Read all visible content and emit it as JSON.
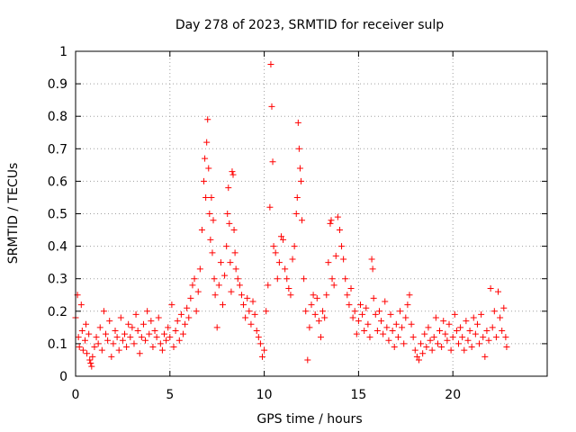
{
  "chart_data": {
    "type": "scatter",
    "title": "Day 278 of 2023, SRMTID for receiver sulp",
    "xlabel": "GPS time / hours",
    "ylabel": "SRMTID / TECUs",
    "xlim": [
      0,
      25
    ],
    "ylim": [
      0,
      1
    ],
    "xticks": [
      0,
      5,
      10,
      15,
      20
    ],
    "yticks": [
      0,
      0.1,
      0.2,
      0.3,
      0.4,
      0.5,
      0.6,
      0.7,
      0.8,
      0.9,
      1
    ],
    "xtick_labels": [
      "0",
      "5",
      "10",
      "15",
      "20"
    ],
    "ytick_labels": [
      "0",
      "0.1",
      "0.2",
      "0.3",
      "0.4",
      "0.5",
      "0.6",
      "0.7",
      "0.8",
      "0.9",
      "1"
    ],
    "grid": true,
    "marker": "+",
    "color": "#ff0000",
    "series": [
      {
        "name": "SRMTID",
        "points": [
          [
            0.0,
            0.18
          ],
          [
            0.1,
            0.25
          ],
          [
            0.15,
            0.12
          ],
          [
            0.2,
            0.09
          ],
          [
            0.3,
            0.22
          ],
          [
            0.35,
            0.14
          ],
          [
            0.4,
            0.08
          ],
          [
            0.5,
            0.11
          ],
          [
            0.55,
            0.16
          ],
          [
            0.6,
            0.07
          ],
          [
            0.7,
            0.13
          ],
          [
            0.75,
            0.05
          ],
          [
            0.8,
            0.04
          ],
          [
            0.85,
            0.03
          ],
          [
            0.9,
            0.06
          ],
          [
            1.0,
            0.09
          ],
          [
            1.1,
            0.12
          ],
          [
            1.2,
            0.1
          ],
          [
            1.3,
            0.15
          ],
          [
            1.4,
            0.08
          ],
          [
            1.5,
            0.2
          ],
          [
            1.6,
            0.13
          ],
          [
            1.7,
            0.11
          ],
          [
            1.8,
            0.17
          ],
          [
            1.9,
            0.06
          ],
          [
            2.0,
            0.1
          ],
          [
            2.1,
            0.14
          ],
          [
            2.2,
            0.12
          ],
          [
            2.3,
            0.08
          ],
          [
            2.4,
            0.18
          ],
          [
            2.5,
            0.11
          ],
          [
            2.6,
            0.13
          ],
          [
            2.7,
            0.09
          ],
          [
            2.8,
            0.16
          ],
          [
            2.9,
            0.12
          ],
          [
            3.0,
            0.15
          ],
          [
            3.1,
            0.1
          ],
          [
            3.2,
            0.19
          ],
          [
            3.3,
            0.14
          ],
          [
            3.4,
            0.07
          ],
          [
            3.5,
            0.12
          ],
          [
            3.6,
            0.16
          ],
          [
            3.7,
            0.11
          ],
          [
            3.8,
            0.2
          ],
          [
            3.9,
            0.13
          ],
          [
            4.0,
            0.17
          ],
          [
            4.1,
            0.09
          ],
          [
            4.2,
            0.14
          ],
          [
            4.3,
            0.12
          ],
          [
            4.4,
            0.18
          ],
          [
            4.5,
            0.1
          ],
          [
            4.6,
            0.08
          ],
          [
            4.7,
            0.13
          ],
          [
            4.8,
            0.11
          ],
          [
            4.9,
            0.15
          ],
          [
            5.0,
            0.12
          ],
          [
            5.1,
            0.22
          ],
          [
            5.2,
            0.09
          ],
          [
            5.3,
            0.14
          ],
          [
            5.4,
            0.17
          ],
          [
            5.5,
            0.11
          ],
          [
            5.6,
            0.19
          ],
          [
            5.7,
            0.13
          ],
          [
            5.8,
            0.16
          ],
          [
            5.9,
            0.21
          ],
          [
            6.0,
            0.18
          ],
          [
            6.1,
            0.24
          ],
          [
            6.2,
            0.28
          ],
          [
            6.3,
            0.3
          ],
          [
            6.4,
            0.2
          ],
          [
            6.5,
            0.26
          ],
          [
            6.6,
            0.33
          ],
          [
            6.7,
            0.45
          ],
          [
            6.8,
            0.6
          ],
          [
            6.85,
            0.67
          ],
          [
            6.9,
            0.55
          ],
          [
            6.95,
            0.72
          ],
          [
            7.0,
            0.79
          ],
          [
            7.05,
            0.64
          ],
          [
            7.1,
            0.5
          ],
          [
            7.15,
            0.42
          ],
          [
            7.2,
            0.55
          ],
          [
            7.25,
            0.38
          ],
          [
            7.3,
            0.48
          ],
          [
            7.35,
            0.3
          ],
          [
            7.4,
            0.25
          ],
          [
            7.5,
            0.15
          ],
          [
            7.6,
            0.28
          ],
          [
            7.7,
            0.35
          ],
          [
            7.8,
            0.22
          ],
          [
            7.9,
            0.31
          ],
          [
            8.0,
            0.4
          ],
          [
            8.05,
            0.5
          ],
          [
            8.1,
            0.58
          ],
          [
            8.15,
            0.47
          ],
          [
            8.2,
            0.35
          ],
          [
            8.25,
            0.26
          ],
          [
            8.3,
            0.63
          ],
          [
            8.35,
            0.62
          ],
          [
            8.4,
            0.45
          ],
          [
            8.45,
            0.38
          ],
          [
            8.5,
            0.33
          ],
          [
            8.6,
            0.3
          ],
          [
            8.7,
            0.28
          ],
          [
            8.8,
            0.25
          ],
          [
            8.9,
            0.22
          ],
          [
            9.0,
            0.18
          ],
          [
            9.1,
            0.24
          ],
          [
            9.2,
            0.2
          ],
          [
            9.3,
            0.16
          ],
          [
            9.4,
            0.23
          ],
          [
            9.5,
            0.19
          ],
          [
            9.6,
            0.14
          ],
          [
            9.7,
            0.12
          ],
          [
            9.8,
            0.1
          ],
          [
            9.9,
            0.06
          ],
          [
            10.0,
            0.08
          ],
          [
            10.1,
            0.2
          ],
          [
            10.2,
            0.28
          ],
          [
            10.3,
            0.52
          ],
          [
            10.35,
            0.96
          ],
          [
            10.4,
            0.83
          ],
          [
            10.45,
            0.66
          ],
          [
            10.5,
            0.4
          ],
          [
            10.6,
            0.38
          ],
          [
            10.7,
            0.3
          ],
          [
            10.8,
            0.35
          ],
          [
            10.9,
            0.43
          ],
          [
            11.0,
            0.42
          ],
          [
            11.1,
            0.33
          ],
          [
            11.2,
            0.3
          ],
          [
            11.3,
            0.27
          ],
          [
            11.4,
            0.25
          ],
          [
            11.5,
            0.36
          ],
          [
            11.6,
            0.4
          ],
          [
            11.7,
            0.5
          ],
          [
            11.75,
            0.55
          ],
          [
            11.8,
            0.78
          ],
          [
            11.85,
            0.7
          ],
          [
            11.9,
            0.64
          ],
          [
            11.95,
            0.6
          ],
          [
            12.0,
            0.48
          ],
          [
            12.1,
            0.3
          ],
          [
            12.2,
            0.2
          ],
          [
            12.3,
            0.05
          ],
          [
            12.4,
            0.15
          ],
          [
            12.5,
            0.22
          ],
          [
            12.6,
            0.25
          ],
          [
            12.7,
            0.19
          ],
          [
            12.8,
            0.24
          ],
          [
            12.9,
            0.17
          ],
          [
            13.0,
            0.12
          ],
          [
            13.1,
            0.2
          ],
          [
            13.2,
            0.18
          ],
          [
            13.3,
            0.25
          ],
          [
            13.4,
            0.35
          ],
          [
            13.5,
            0.47
          ],
          [
            13.55,
            0.48
          ],
          [
            13.6,
            0.3
          ],
          [
            13.7,
            0.28
          ],
          [
            13.8,
            0.37
          ],
          [
            13.9,
            0.49
          ],
          [
            14.0,
            0.45
          ],
          [
            14.1,
            0.4
          ],
          [
            14.2,
            0.36
          ],
          [
            14.3,
            0.3
          ],
          [
            14.4,
            0.25
          ],
          [
            14.5,
            0.22
          ],
          [
            14.6,
            0.27
          ],
          [
            14.7,
            0.18
          ],
          [
            14.8,
            0.2
          ],
          [
            14.9,
            0.13
          ],
          [
            15.0,
            0.17
          ],
          [
            15.1,
            0.22
          ],
          [
            15.2,
            0.19
          ],
          [
            15.3,
            0.14
          ],
          [
            15.4,
            0.21
          ],
          [
            15.5,
            0.16
          ],
          [
            15.6,
            0.12
          ],
          [
            15.7,
            0.36
          ],
          [
            15.75,
            0.33
          ],
          [
            15.8,
            0.24
          ],
          [
            15.9,
            0.19
          ],
          [
            16.0,
            0.14
          ],
          [
            16.1,
            0.2
          ],
          [
            16.2,
            0.17
          ],
          [
            16.3,
            0.13
          ],
          [
            16.4,
            0.23
          ],
          [
            16.5,
            0.15
          ],
          [
            16.6,
            0.11
          ],
          [
            16.7,
            0.19
          ],
          [
            16.8,
            0.14
          ],
          [
            16.9,
            0.09
          ],
          [
            17.0,
            0.16
          ],
          [
            17.1,
            0.12
          ],
          [
            17.2,
            0.2
          ],
          [
            17.3,
            0.15
          ],
          [
            17.4,
            0.1
          ],
          [
            17.5,
            0.18
          ],
          [
            17.6,
            0.22
          ],
          [
            17.7,
            0.25
          ],
          [
            17.8,
            0.16
          ],
          [
            17.9,
            0.12
          ],
          [
            18.0,
            0.08
          ],
          [
            18.1,
            0.06
          ],
          [
            18.2,
            0.05
          ],
          [
            18.3,
            0.1
          ],
          [
            18.4,
            0.07
          ],
          [
            18.5,
            0.13
          ],
          [
            18.6,
            0.09
          ],
          [
            18.7,
            0.15
          ],
          [
            18.8,
            0.11
          ],
          [
            18.9,
            0.08
          ],
          [
            19.0,
            0.12
          ],
          [
            19.1,
            0.18
          ],
          [
            19.2,
            0.1
          ],
          [
            19.3,
            0.14
          ],
          [
            19.4,
            0.09
          ],
          [
            19.5,
            0.17
          ],
          [
            19.6,
            0.13
          ],
          [
            19.7,
            0.11
          ],
          [
            19.8,
            0.16
          ],
          [
            19.9,
            0.08
          ],
          [
            20.0,
            0.12
          ],
          [
            20.1,
            0.19
          ],
          [
            20.2,
            0.14
          ],
          [
            20.3,
            0.1
          ],
          [
            20.4,
            0.15
          ],
          [
            20.5,
            0.12
          ],
          [
            20.6,
            0.08
          ],
          [
            20.7,
            0.17
          ],
          [
            20.8,
            0.11
          ],
          [
            20.9,
            0.14
          ],
          [
            21.0,
            0.09
          ],
          [
            21.1,
            0.18
          ],
          [
            21.2,
            0.13
          ],
          [
            21.3,
            0.16
          ],
          [
            21.4,
            0.1
          ],
          [
            21.5,
            0.19
          ],
          [
            21.6,
            0.12
          ],
          [
            21.7,
            0.06
          ],
          [
            21.8,
            0.14
          ],
          [
            21.9,
            0.11
          ],
          [
            22.0,
            0.27
          ],
          [
            22.1,
            0.15
          ],
          [
            22.2,
            0.2
          ],
          [
            22.3,
            0.12
          ],
          [
            22.4,
            0.26
          ],
          [
            22.5,
            0.18
          ],
          [
            22.6,
            0.14
          ],
          [
            22.7,
            0.21
          ],
          [
            22.8,
            0.12
          ],
          [
            22.85,
            0.09
          ]
        ]
      }
    ]
  }
}
